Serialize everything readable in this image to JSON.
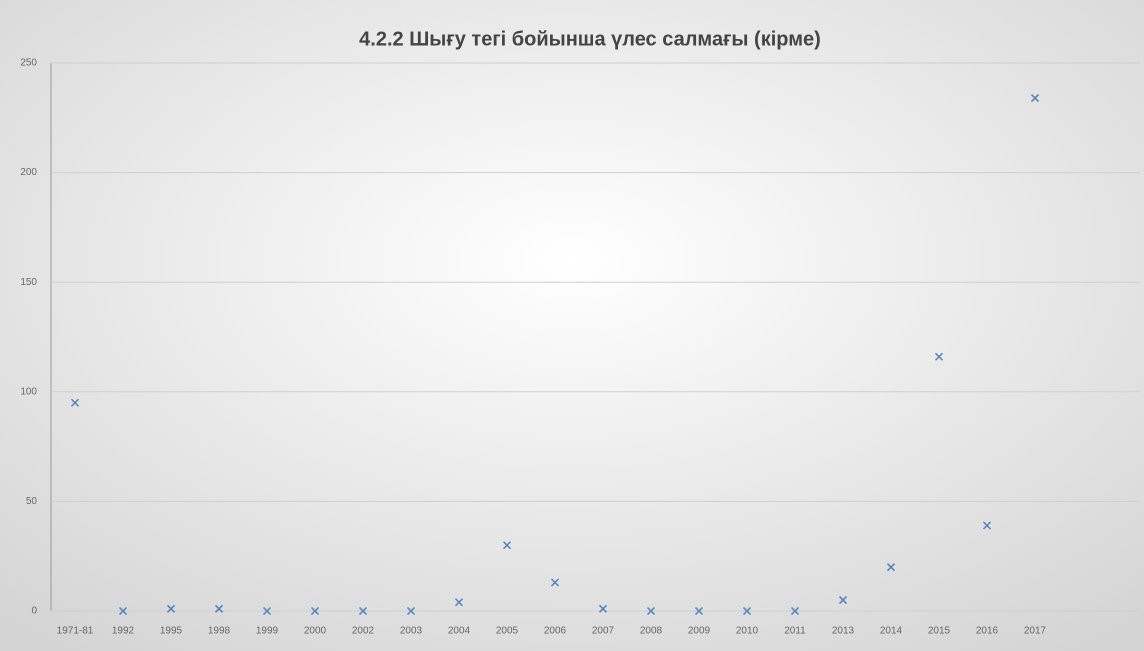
{
  "chart_data": {
    "type": "scatter",
    "title": "4.2.2 Шығу тегі бойынша үлес салмағы (кірме)",
    "categories": [
      "1971-81",
      "1992",
      "1995",
      "1998",
      "1999",
      "2000",
      "2002",
      "2003",
      "2004",
      "2005",
      "2006",
      "2007",
      "2008",
      "2009",
      "2010",
      "2011",
      "2013",
      "2014",
      "2015",
      "2016",
      "2017"
    ],
    "values": [
      95,
      0,
      1,
      1,
      0,
      0,
      0,
      0,
      4,
      30,
      13,
      1,
      0,
      0,
      0,
      0,
      5,
      20,
      116,
      39,
      234
    ],
    "color": "#4f81bd",
    "ylim": [
      0,
      250
    ],
    "yticks": [
      0,
      50,
      100,
      150,
      200,
      250
    ],
    "grid": true
  }
}
